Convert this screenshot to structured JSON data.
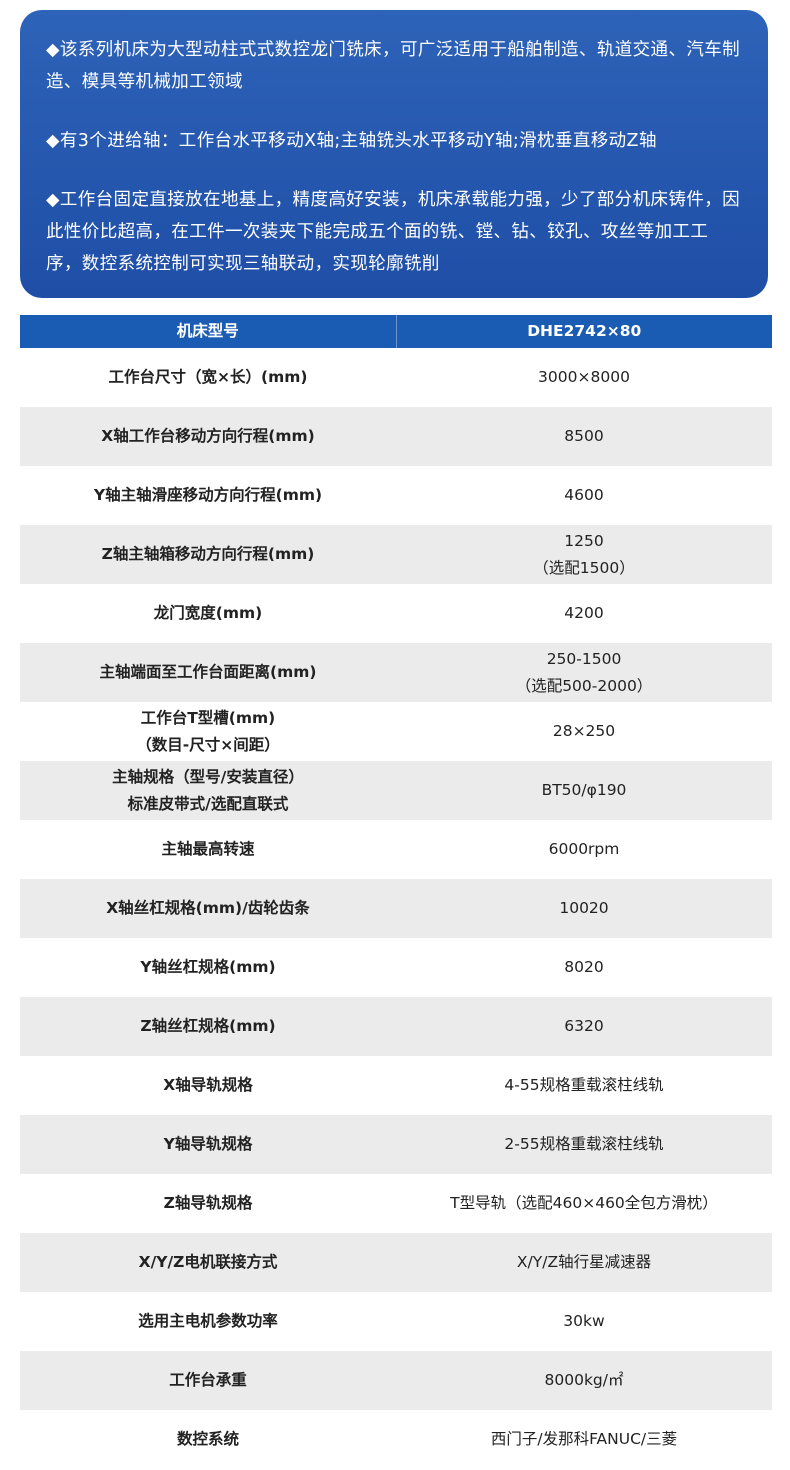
{
  "intro": {
    "paragraphs": [
      "◆该系列机床为大型动柱式式数控龙门铣床，可广泛适用于船舶制造、轨道交通、汽车制造、模具等机械加工领域",
      "◆有3个进给轴：工作台水平移动X轴;主轴铣头水平移动Y轴;滑枕垂直移动Z轴",
      "◆工作台固定直接放在地基上，精度高好安装，机床承载能力强，少了部分机床铸件，因此性价比超高，在工件一次装夹下能完成五个面的铣、镗、钻、铰孔、攻丝等加工工序，数控系统控制可实现三轴联动，实现轮廓铣削"
    ]
  },
  "table": {
    "header": [
      "机床型号",
      "DHE2742×80"
    ],
    "rows": [
      {
        "param": [
          "工作台尺寸（宽×长）(mm)"
        ],
        "value": [
          "3000×8000"
        ]
      },
      {
        "param": [
          "X轴工作台移动方向行程(mm)"
        ],
        "value": [
          "8500"
        ]
      },
      {
        "param": [
          "Y轴主轴滑座移动方向行程(mm)"
        ],
        "value": [
          "4600"
        ]
      },
      {
        "param": [
          "Z轴主轴箱移动方向行程(mm)"
        ],
        "value": [
          "1250",
          "（选配1500）"
        ]
      },
      {
        "param": [
          "龙门宽度(mm)"
        ],
        "value": [
          "4200"
        ]
      },
      {
        "param": [
          "主轴端面至工作台面距离(mm)"
        ],
        "value": [
          "250-1500",
          "（选配500-2000）"
        ]
      },
      {
        "param": [
          "工作台T型槽(mm)",
          "（数目-尺寸×间距）"
        ],
        "value": [
          "28×250"
        ]
      },
      {
        "param": [
          "主轴规格（型号/安装直径）",
          "标准皮带式/选配直联式"
        ],
        "value": [
          "BT50/φ190"
        ]
      },
      {
        "param": [
          "主轴最高转速"
        ],
        "value": [
          "6000rpm"
        ]
      },
      {
        "param": [
          "X轴丝杠规格(mm)/齿轮齿条"
        ],
        "value": [
          "10020"
        ]
      },
      {
        "param": [
          "Y轴丝杠规格(mm)"
        ],
        "value": [
          "8020"
        ]
      },
      {
        "param": [
          "Z轴丝杠规格(mm)"
        ],
        "value": [
          "6320"
        ]
      },
      {
        "param": [
          "X轴导轨规格"
        ],
        "value": [
          "4-55规格重载滚柱线轨"
        ]
      },
      {
        "param": [
          "Y轴导轨规格"
        ],
        "value": [
          "2-55规格重载滚柱线轨"
        ]
      },
      {
        "param": [
          "Z轴导轨规格"
        ],
        "value": [
          "T型导轨（选配460×460全包方滑枕）"
        ]
      },
      {
        "param": [
          "X/Y/Z电机联接方式"
        ],
        "value": [
          "X/Y/Z轴行星减速器"
        ]
      },
      {
        "param": [
          "选用主电机参数功率"
        ],
        "value": [
          "30kw"
        ]
      },
      {
        "param": [
          "工作台承重"
        ],
        "value": [
          "8000kg/㎡"
        ]
      },
      {
        "param": [
          "数控系统"
        ],
        "value": [
          "西门子/发那科FANUC/三菱"
        ]
      }
    ]
  }
}
